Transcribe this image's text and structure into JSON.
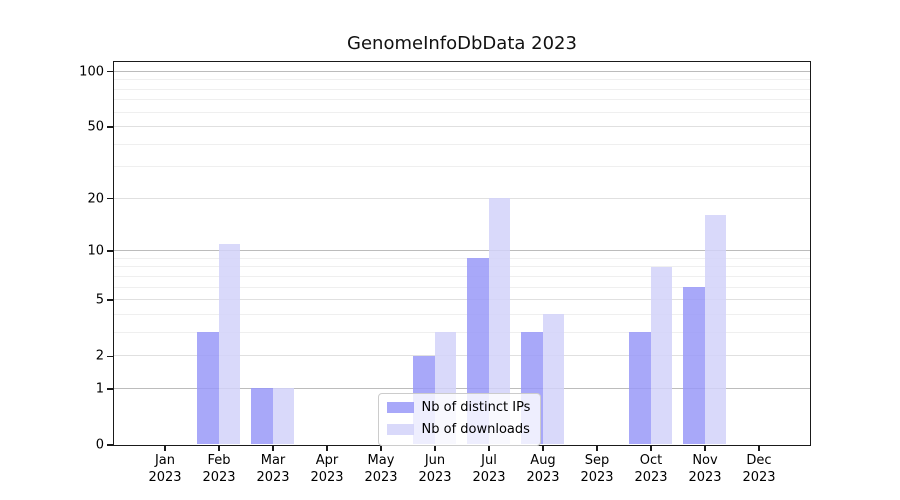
{
  "chart_data": {
    "type": "bar",
    "title": "GenomeInfoDbData 2023",
    "categories": [
      "Jan 2023",
      "Feb 2023",
      "Mar 2023",
      "Apr 2023",
      "May 2023",
      "Jun 2023",
      "Jul 2023",
      "Aug 2023",
      "Sep 2023",
      "Oct 2023",
      "Nov 2023",
      "Dec 2023"
    ],
    "series": [
      {
        "name": "Nb of distinct IPs",
        "color": "#9999f8",
        "values": [
          0,
          3,
          1,
          0,
          0,
          2,
          9,
          3,
          0,
          3,
          6,
          0
        ]
      },
      {
        "name": "Nb of downloads",
        "color": "#d2d2f9",
        "values": [
          0,
          11,
          1,
          0,
          0,
          3,
          20,
          4,
          0,
          8,
          16,
          0
        ]
      }
    ],
    "xlabel": "",
    "ylabel": "",
    "y_scale": "log10(value+1)",
    "y_ticks": [
      0,
      1,
      2,
      5,
      10,
      20,
      50,
      100
    ],
    "ylim": [
      0,
      113
    ],
    "grid": true,
    "gridlines": {
      "major_values": [
        1,
        10,
        100
      ],
      "mid_values": [
        2,
        5,
        20,
        50
      ],
      "minor_values": [
        3,
        4,
        6,
        7,
        8,
        9,
        30,
        40,
        60,
        70,
        80,
        90
      ],
      "major_color": "#bcbcbc",
      "mid_color": "#e0e0e0",
      "minor_color": "#efefef"
    },
    "legend": {
      "position": "inside lower center",
      "entries": [
        "Nb of distinct IPs",
        "Nb of downloads"
      ]
    }
  }
}
